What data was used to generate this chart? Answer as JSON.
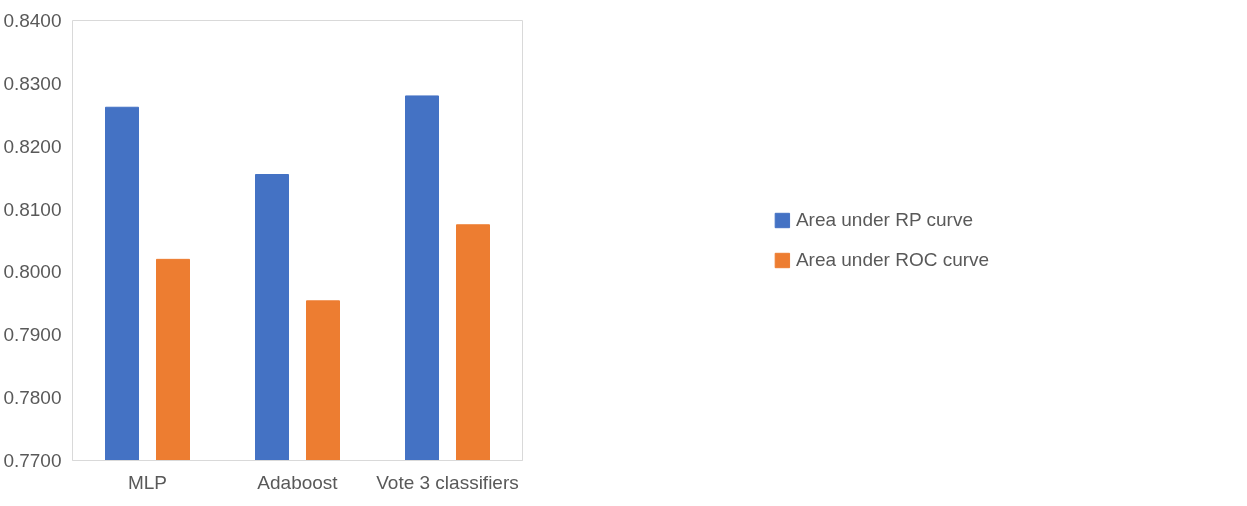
{
  "chart_data": {
    "type": "bar",
    "categories": [
      "MLP",
      "Adaboost",
      "Vote 3 classifiers"
    ],
    "series": [
      {
        "name": "Area under RP curve",
        "color": "#4472c4",
        "values": [
          0.8262,
          0.8155,
          0.828
        ]
      },
      {
        "name": "Area under ROC curve",
        "color": "#ed7d31",
        "values": [
          0.802,
          0.7954,
          0.8075
        ]
      }
    ],
    "ylim": [
      0.77,
      0.84
    ],
    "yticks": [
      {
        "value": 0.77,
        "label": "0.7700"
      },
      {
        "value": 0.78,
        "label": "0.7800"
      },
      {
        "value": 0.79,
        "label": "0.7900"
      },
      {
        "value": 0.8,
        "label": "0.8000"
      },
      {
        "value": 0.81,
        "label": "0.8100"
      },
      {
        "value": 0.82,
        "label": "0.8200"
      },
      {
        "value": 0.83,
        "label": "0.8300"
      },
      {
        "value": 0.84,
        "label": "0.8400"
      }
    ],
    "grid": false,
    "legend": "right"
  }
}
